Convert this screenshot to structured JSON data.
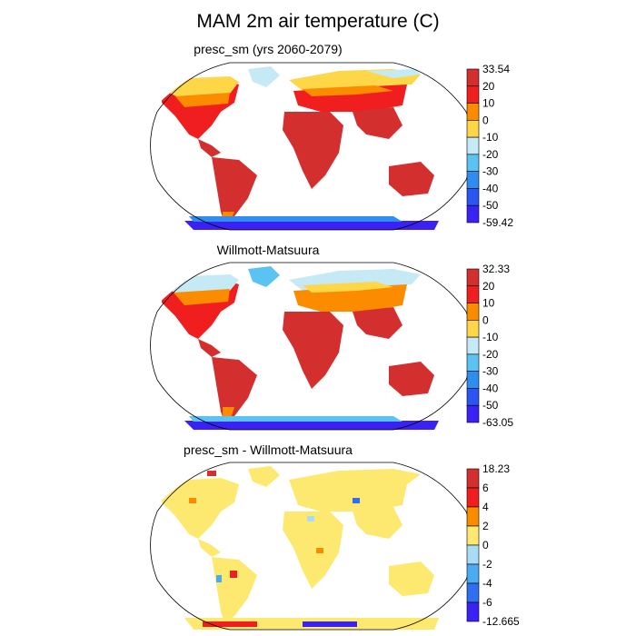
{
  "figure": {
    "title": "MAM 2m air temperature (C)"
  },
  "chart_data": [
    {
      "type": "heatmap",
      "title": "presc_sm (yrs 2060-2079)",
      "projection": "Robinson",
      "colorbar": {
        "labels": [
          "33.54",
          "20",
          "10",
          "0",
          "-10",
          "-20",
          "-30",
          "-40",
          "-50",
          "-59.42"
        ],
        "colors": [
          "#d42f2f",
          "#f01e1e",
          "#fb8c00",
          "#fdd748",
          "#c6e9f6",
          "#5bc3f2",
          "#2f8df0",
          "#2a55f2",
          "#3a22f4"
        ]
      }
    },
    {
      "type": "heatmap",
      "title": "Willmott-Matsuura",
      "projection": "Robinson",
      "colorbar": {
        "labels": [
          "32.33",
          "20",
          "10",
          "0",
          "-10",
          "-20",
          "-30",
          "-40",
          "-50",
          "-63.05"
        ],
        "colors": [
          "#d42f2f",
          "#f01e1e",
          "#fb8c00",
          "#fdd748",
          "#c6e9f6",
          "#5bc3f2",
          "#2f8df0",
          "#2a55f2",
          "#3a22f4"
        ]
      }
    },
    {
      "type": "heatmap",
      "title": "presc_sm - Willmott-Matsuura",
      "projection": "Robinson",
      "colorbar": {
        "labels": [
          "18.23",
          "6",
          "4",
          "2",
          "0",
          "-2",
          "-4",
          "-6",
          "-12.665"
        ],
        "colors": [
          "#d42f2f",
          "#f01e1e",
          "#fb8c00",
          "#fde970",
          "#a8dbf4",
          "#4aaaf2",
          "#2f6ef0",
          "#3a22f4"
        ]
      }
    }
  ]
}
